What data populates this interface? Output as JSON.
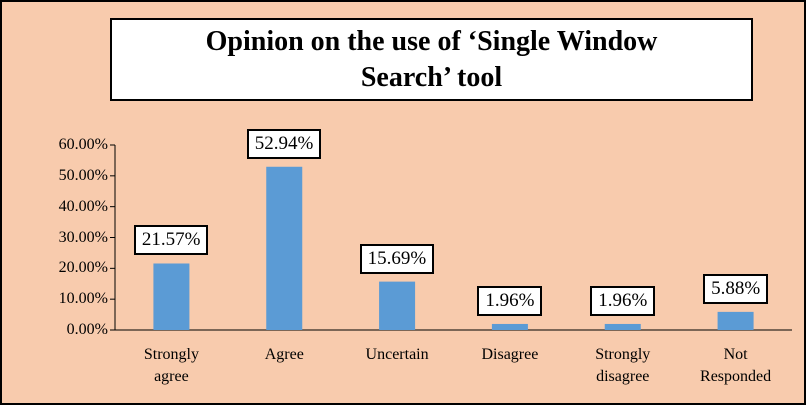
{
  "chart_data": {
    "type": "bar",
    "title": "Opinion on the use of ‘Single Window Search’ tool",
    "categories": [
      "Strongly agree",
      "Agree",
      "Uncertain",
      "Disagree",
      "Strongly disagree",
      "Not Responded"
    ],
    "values": [
      21.57,
      52.94,
      15.69,
      1.96,
      1.96,
      5.88
    ],
    "value_labels": [
      "21.57%",
      "52.94%",
      "15.69%",
      "1.96%",
      "1.96%",
      "5.88%"
    ],
    "color": "#5b9bd5",
    "ylim": [
      0,
      60
    ],
    "yticks": [
      {
        "value": 0,
        "label": "0.00%"
      },
      {
        "value": 10,
        "label": "10.00%"
      },
      {
        "value": 20,
        "label": "20.00%"
      },
      {
        "value": 30,
        "label": "30.00%"
      },
      {
        "value": 40,
        "label": "40.00%"
      },
      {
        "value": 50,
        "label": "50.00%"
      },
      {
        "value": 60,
        "label": "60.00%"
      }
    ]
  }
}
